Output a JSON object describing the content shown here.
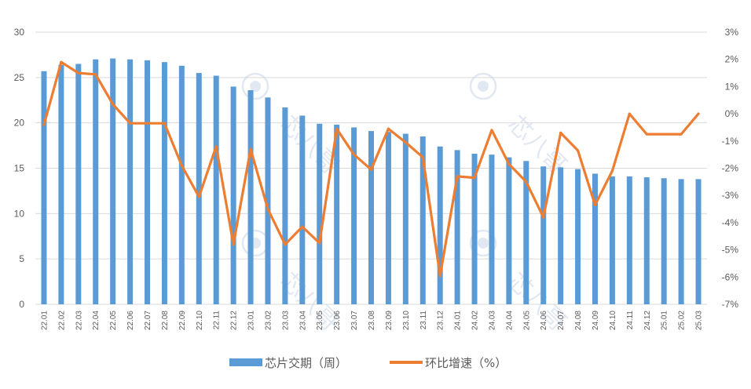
{
  "chart_data": {
    "type": "bar",
    "categories": [
      "22.01",
      "22.02",
      "22.03",
      "22.04",
      "22.05",
      "22.06",
      "22.07",
      "22.08",
      "22.09",
      "22.10",
      "22.11",
      "22.12",
      "23.01",
      "23.02",
      "23.03",
      "23.04",
      "23.05",
      "23.06",
      "23.07",
      "23.08",
      "23.09",
      "23.10",
      "23.11",
      "23.12",
      "24.01",
      "24.02",
      "24.03",
      "24.04",
      "24.05",
      "24.06",
      "24.07",
      "24.08",
      "24.09",
      "24.10",
      "24.11",
      "24.12",
      "25.01",
      "25.02",
      "25.03"
    ],
    "series": [
      {
        "name": "芯片交期（周）",
        "type": "bar",
        "axis": "left",
        "color": "#5b9bd5",
        "values": [
          25.7,
          26.4,
          26.5,
          27.0,
          27.1,
          27.0,
          26.9,
          26.7,
          26.3,
          25.5,
          25.2,
          24.0,
          23.6,
          22.8,
          21.7,
          20.8,
          19.9,
          19.8,
          19.5,
          19.1,
          19.0,
          18.8,
          18.5,
          17.4,
          17.0,
          16.6,
          16.5,
          16.2,
          15.8,
          15.2,
          15.1,
          14.9,
          14.4,
          14.1,
          14.1,
          14.0,
          13.9,
          13.8,
          13.8
        ]
      },
      {
        "name": "环比增速（%）",
        "type": "line",
        "axis": "right",
        "color": "#ed7d31",
        "values": [
          -0.4,
          1.9,
          1.5,
          1.45,
          0.35,
          -0.35,
          -0.35,
          -0.35,
          -1.9,
          -3.05,
          -1.2,
          -4.8,
          -1.3,
          -3.5,
          -4.8,
          -4.15,
          -4.75,
          -0.55,
          -1.5,
          -2.05,
          -0.55,
          -1.05,
          -1.6,
          -5.95,
          -2.3,
          -2.35,
          -0.6,
          -1.85,
          -2.5,
          -3.8,
          -0.7,
          -1.35,
          -3.35,
          -2.1,
          0.0,
          -0.75,
          -0.75,
          -0.75,
          0.0
        ]
      }
    ],
    "y_left": {
      "min": 0,
      "max": 30,
      "ticks": [
        "0",
        "5",
        "10",
        "15",
        "20",
        "25",
        "30"
      ]
    },
    "y_right": {
      "min": -7,
      "max": 3,
      "ticks": [
        "-7%",
        "-6%",
        "-5%",
        "-4%",
        "-3%",
        "-2%",
        "-1%",
        "0%",
        "1%",
        "2%",
        "3%"
      ]
    },
    "grid": true,
    "legend": "bottom"
  },
  "watermark": {
    "text": "芯八哥"
  }
}
